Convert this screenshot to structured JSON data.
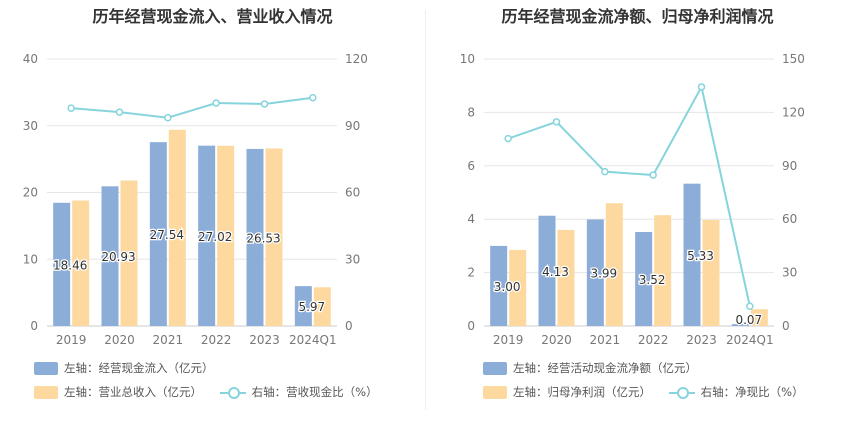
{
  "colors": {
    "bar_left": "#8dadd9",
    "bar_right": "#fdd9a0",
    "line": "#86d4dc",
    "grid": "#e6e6e6",
    "axis_text": "#777777",
    "label_text": "#333333"
  },
  "chart_data": [
    {
      "type": "bar",
      "title": "历年经营现金流入、营业收入情况",
      "categories": [
        "2019",
        "2020",
        "2021",
        "2022",
        "2023",
        "2024Q1"
      ],
      "y_left": {
        "min": 0,
        "max": 40,
        "ticks": [
          0,
          10,
          20,
          30,
          40
        ]
      },
      "y_right": {
        "min": 0,
        "max": 120,
        "ticks": [
          0,
          30,
          60,
          90,
          120
        ]
      },
      "series": [
        {
          "name": "左轴：经营现金流入（亿元）",
          "axis": "left",
          "kind": "bar",
          "values": [
            18.46,
            20.93,
            27.54,
            27.02,
            26.53,
            5.97
          ],
          "labels": [
            "18.46",
            "20.93",
            "27.54",
            "27.02",
            "26.53",
            "5.97"
          ]
        },
        {
          "name": "左轴：营业总收入（亿元）",
          "axis": "left",
          "kind": "bar",
          "values": [
            18.8,
            21.8,
            29.4,
            27.0,
            26.6,
            5.8
          ]
        },
        {
          "name": "右轴：营收现金比（%）",
          "axis": "right",
          "kind": "line",
          "values": [
            97.9,
            96.1,
            93.6,
            100.2,
            99.8,
            102.6
          ]
        }
      ]
    },
    {
      "type": "bar",
      "title": "历年经营现金流净额、归母净利润情况",
      "categories": [
        "2019",
        "2020",
        "2021",
        "2022",
        "2023",
        "2024Q1"
      ],
      "y_left": {
        "min": 0,
        "max": 10,
        "ticks": [
          0,
          2,
          4,
          6,
          8,
          10
        ]
      },
      "y_right": {
        "min": 0,
        "max": 150,
        "ticks": [
          0,
          30,
          60,
          90,
          120,
          150
        ]
      },
      "series": [
        {
          "name": "左轴：经营活动现金流净额（亿元）",
          "axis": "left",
          "kind": "bar",
          "values": [
            3.0,
            4.13,
            3.99,
            3.52,
            5.33,
            0.07
          ],
          "labels": [
            "3.00",
            "4.13",
            "3.99",
            "3.52",
            "5.33",
            "0.07"
          ]
        },
        {
          "name": "左轴：归母净利润（亿元）",
          "axis": "left",
          "kind": "bar",
          "values": [
            2.85,
            3.6,
            4.6,
            4.15,
            3.97,
            0.63
          ]
        },
        {
          "name": "右轴：净现比（%）",
          "axis": "right",
          "kind": "line",
          "values": [
            105.3,
            114.7,
            86.7,
            84.8,
            134.3,
            11.1
          ]
        }
      ]
    }
  ]
}
